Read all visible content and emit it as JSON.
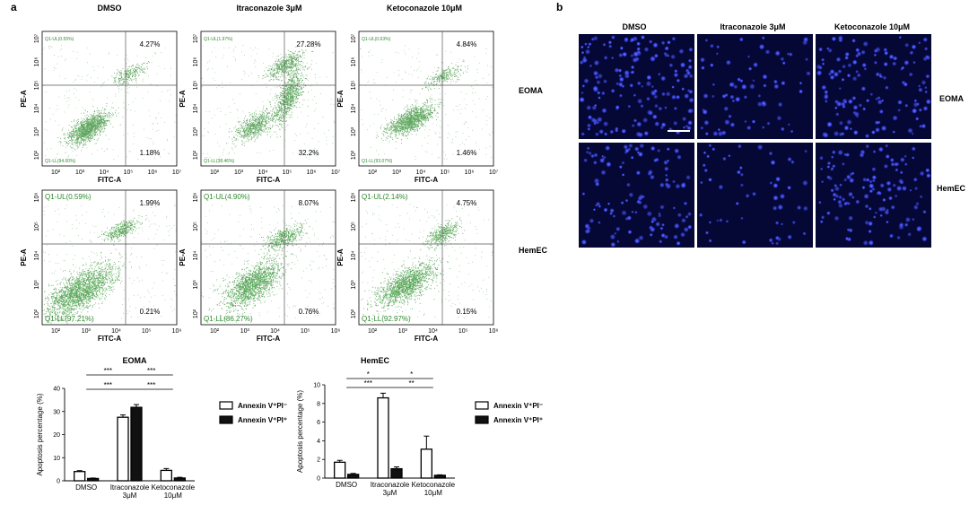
{
  "panel_a_label": "a",
  "panel_b_label": "b",
  "treatments": [
    "DMSO",
    "Itraconazole 3μM",
    "Ketoconazole 10μM"
  ],
  "cell_lines": [
    "EOMA",
    "HemEC"
  ],
  "flow_axes": {
    "x": "FITC-A",
    "y": "PE-A"
  },
  "flow_quadrants": {
    "EOMA": [
      {
        "ul": "Q1-UL(0.55%)",
        "ll": "Q1-LL(94.00%)",
        "ur": "4.27%",
        "lr": "1.18%"
      },
      {
        "ul": "Q1-UL(1.97%)",
        "ll": "Q1-LL(38.46%)",
        "ur": "27.28%",
        "lr": "32.2%"
      },
      {
        "ul": "Q1-UL(0.63%)",
        "ll": "Q1-LL(93.07%)",
        "ur": "4.84%",
        "lr": "1.46%"
      }
    ],
    "HemEC": [
      {
        "ul": "Q1-UL(0.59%)",
        "ll": "Q1-LL(97.21%)",
        "ur": "1.99%",
        "lr": "0.21%"
      },
      {
        "ul": "Q1-UL(4.90%)",
        "ll": "Q1-LL(86.27%)",
        "ur": "8.07%",
        "lr": "0.76%"
      },
      {
        "ul": "Q1-UL(2.14%)",
        "ll": "Q1-LL(92.97%)",
        "ur": "4.75%",
        "lr": "0.15%"
      }
    ]
  },
  "flow_ticks": {
    "EOMA": {
      "x": [
        "10²",
        "10³",
        "10⁴",
        "10⁵",
        "10⁶",
        "10⁷"
      ],
      "y": [
        "10²",
        "10³",
        "10⁴",
        "10⁵",
        "10⁶",
        "10⁷"
      ]
    },
    "HemEC": {
      "x": [
        "10²",
        "10³",
        "10⁴",
        "10⁵",
        "10⁶"
      ],
      "y": [
        "10²",
        "10³",
        "10⁴",
        "10⁵",
        "10⁶"
      ]
    }
  },
  "scale_bar_present": true,
  "chart_data": [
    {
      "type": "bar",
      "title": "EOMA",
      "ylabel": "Apoptosis percentage (%)",
      "ylim": [
        0,
        40
      ],
      "yticks": [
        0,
        10,
        20,
        30,
        40
      ],
      "categories": [
        "DMSO",
        "Itraconazole\n3μM",
        "Ketoconazole\n10μM"
      ],
      "series": [
        {
          "name": "Annexin V+PI-",
          "legend": "Annexin V⁺PI⁻",
          "fill": "#ffffff",
          "values": [
            4.0,
            27.5,
            4.5
          ],
          "errors": [
            0.4,
            1.0,
            0.8
          ]
        },
        {
          "name": "Annexin V+PI+",
          "legend": "Annexin V⁺PI⁺",
          "fill": "#111111",
          "values": [
            1.0,
            31.8,
            1.2
          ],
          "errors": [
            0.2,
            1.2,
            0.3
          ]
        }
      ],
      "significance": [
        {
          "label": "***",
          "from": 0,
          "to": 1,
          "level": 1
        },
        {
          "label": "***",
          "from": 1,
          "to": 2,
          "level": 1
        },
        {
          "label": "***",
          "from": 0,
          "to": 1,
          "level": 0
        },
        {
          "label": "***",
          "from": 1,
          "to": 2,
          "level": 0
        }
      ]
    },
    {
      "type": "bar",
      "title": "HemEC",
      "ylabel": "Apoptosis percentage (%)",
      "ylim": [
        0,
        10
      ],
      "yticks": [
        0,
        2,
        4,
        6,
        8,
        10
      ],
      "categories": [
        "DMSO",
        "Itraconazole\n3μM",
        "Ketoconazole\n10μM"
      ],
      "series": [
        {
          "name": "Annexin V+PI-",
          "legend": "Annexin V⁺PI⁻",
          "fill": "#ffffff",
          "values": [
            1.7,
            8.6,
            3.1
          ],
          "errors": [
            0.2,
            0.5,
            1.4
          ]
        },
        {
          "name": "Annexin V+PI+",
          "legend": "Annexin V⁺PI⁺",
          "fill": "#111111",
          "values": [
            0.4,
            1.0,
            0.3
          ],
          "errors": [
            0.1,
            0.2,
            0.05
          ]
        }
      ],
      "significance": [
        {
          "label": "*",
          "from": 0,
          "to": 1,
          "level": 1
        },
        {
          "label": "*",
          "from": 1,
          "to": 2,
          "level": 1
        },
        {
          "label": "***",
          "from": 0,
          "to": 1,
          "level": 0
        },
        {
          "label": "**",
          "from": 1,
          "to": 2,
          "level": 0
        }
      ]
    }
  ]
}
